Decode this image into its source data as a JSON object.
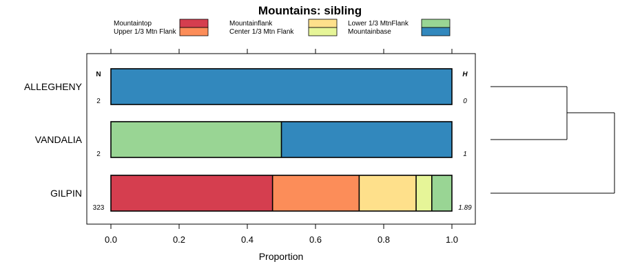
{
  "chart_data": {
    "type": "bar",
    "subtype": "stacked-horizontal-proportion",
    "title": "Mountains: sibling",
    "xlabel": "Proportion",
    "ylabel": "",
    "xlim": [
      0,
      1
    ],
    "xticks": [
      0.0,
      0.2,
      0.4,
      0.6,
      0.8,
      1.0
    ],
    "xtick_labels": [
      "0.0",
      "0.2",
      "0.4",
      "0.6",
      "0.8",
      "1.0"
    ],
    "n_header": "N",
    "h_header": "H",
    "legend": [
      {
        "name": "Mountaintop",
        "color": "#d53e4f"
      },
      {
        "name": "Upper 1/3 Mtn Flank",
        "color": "#fc8d59"
      },
      {
        "name": "Mountainflank",
        "color": "#fee08b"
      },
      {
        "name": "Center 1/3 Mtn Flank",
        "color": "#e6f598"
      },
      {
        "name": "Lower 1/3 MtnFlank",
        "color": "#99d594"
      },
      {
        "name": "Mountainbase",
        "color": "#3288bd"
      }
    ],
    "categories": [
      "ALLEGHENY",
      "VANDALIA",
      "GILPIN"
    ],
    "series": [
      {
        "name": "Mountaintop",
        "values": [
          0,
          0,
          0.474
        ]
      },
      {
        "name": "Upper 1/3 Mtn Flank",
        "values": [
          0,
          0,
          0.254
        ]
      },
      {
        "name": "Mountainflank",
        "values": [
          0,
          0,
          0.167
        ]
      },
      {
        "name": "Center 1/3 Mtn Flank",
        "values": [
          0,
          0,
          0.046
        ]
      },
      {
        "name": "Lower 1/3 MtnFlank",
        "values": [
          0,
          0.5,
          0.059
        ]
      },
      {
        "name": "Mountainbase",
        "values": [
          1,
          0.5,
          0
        ]
      }
    ],
    "n_values": [
      "2",
      "2",
      "323"
    ],
    "h_values": [
      "0",
      "1",
      "1.89"
    ],
    "dendrogram": "ALLEGHENY and VANDALIA join first, then GILPIN joins"
  }
}
